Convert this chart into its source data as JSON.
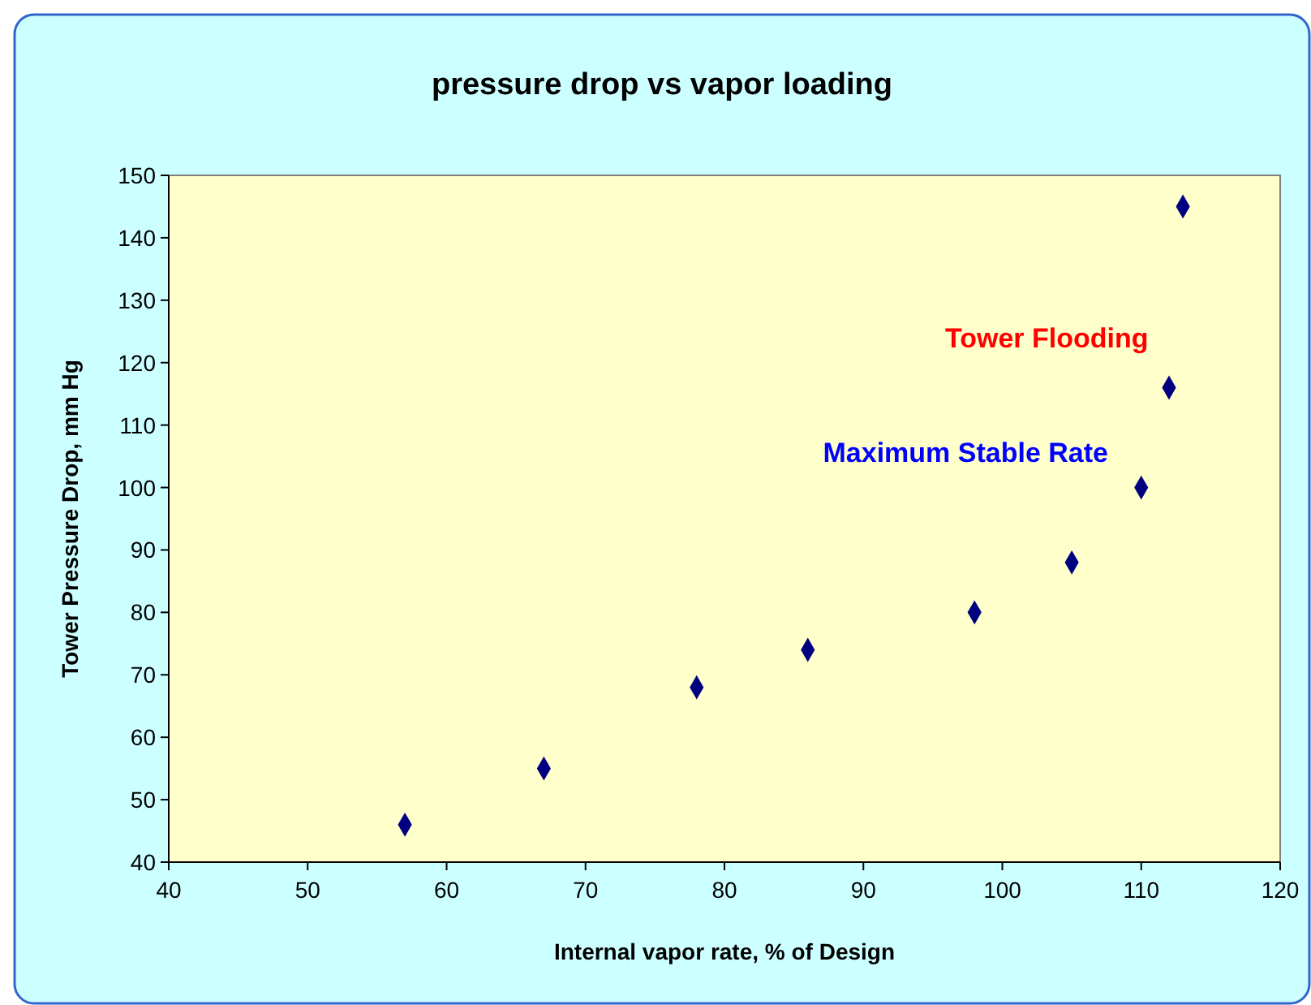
{
  "chart_data": {
    "type": "scatter",
    "title": "pressure drop vs vapor loading",
    "xlabel": "Internal vapor rate, % of Design",
    "ylabel": "Tower Pressure Drop, mm Hg",
    "x": [
      57,
      67,
      78,
      86,
      98,
      105,
      110,
      112,
      113
    ],
    "series": [
      {
        "color": "#000080",
        "values": [
          46,
          55,
          68,
          74,
          80,
          88,
          100,
          116,
          145
        ]
      }
    ],
    "xlim": [
      40,
      120
    ],
    "xticks": [
      40,
      50,
      60,
      70,
      80,
      90,
      100,
      110,
      120
    ],
    "ylim": [
      40,
      150
    ],
    "yticks": [
      40,
      50,
      60,
      70,
      80,
      90,
      100,
      110,
      120,
      130,
      140,
      150
    ],
    "marker": "diamond",
    "grid": false,
    "annotations": [
      "Tower Flooding",
      "Maximum Stable Rate"
    ]
  }
}
